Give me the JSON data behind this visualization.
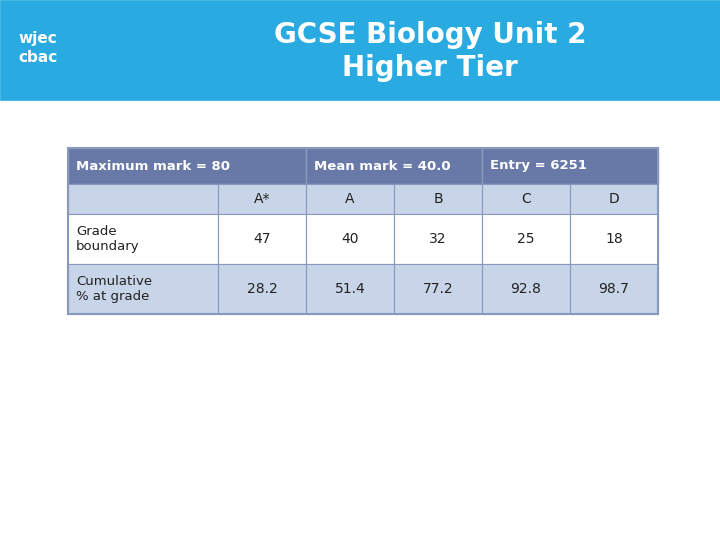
{
  "title_line1": "GCSE Biology Unit 2",
  "title_line2": "Higher Tier",
  "title_bg_color": "#29ABE2",
  "title_text_color": "#FFFFFF",
  "header_bg_color": "#6879A8",
  "header_text_color": "#FFFFFF",
  "subheader_bg_color": "#C8D4E8",
  "row1_bg_color": "#FFFFFF",
  "row2_bg_color": "#C8D4E8",
  "table_border_color": "#8899BB",
  "col_headers": [
    "",
    "A*",
    "A",
    "B",
    "C",
    "D"
  ],
  "span_headers": [
    {
      "text": "Maximum mark = 80"
    },
    {
      "text": "Mean mark = 40.0"
    },
    {
      "text": "Entry = 6251"
    }
  ],
  "rows": [
    {
      "label": "Grade\nboundary",
      "values": [
        "47",
        "40",
        "32",
        "25",
        "18"
      ]
    },
    {
      "label": "Cumulative\n% at grade",
      "values": [
        "28.2",
        "51.4",
        "77.2",
        "92.8",
        "98.7"
      ]
    }
  ],
  "bg_color": "#FFFFFF",
  "logo_text_line1": "wjec",
  "logo_text_line2": "cbac"
}
